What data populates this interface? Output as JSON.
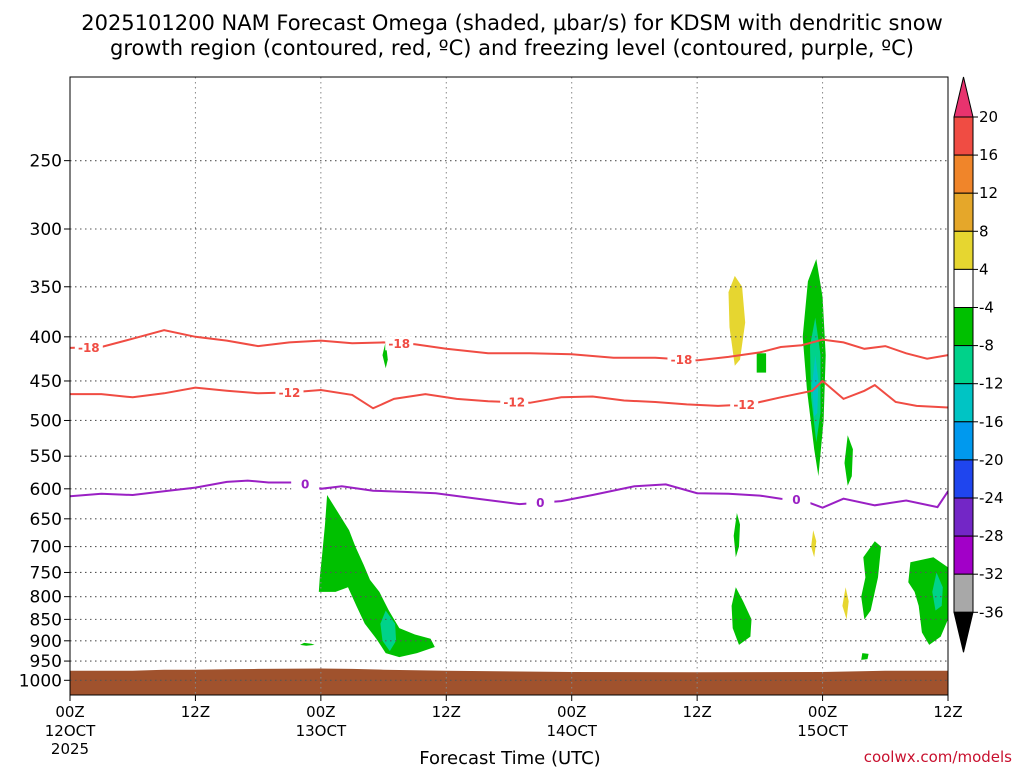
{
  "chart_data": {
    "type": "contour",
    "title_lines": [
      "2025101200 NAM Forecast Omega (shaded, μbar/s) for KDSM with dendritic snow",
      "growth region (contoured, red, ºC) and freezing level (contoured, purple, ºC)"
    ],
    "xlabel": "Forecast Time (UTC)",
    "credit": "coolwx.com/models",
    "x_range_hours": [
      0,
      84
    ],
    "y_axis": {
      "label": "",
      "scale": "log-pressure",
      "range_hPa": [
        200,
        1040
      ],
      "tick_labels": [
        "250",
        "300",
        "350",
        "400",
        "450",
        "500",
        "550",
        "600",
        "650",
        "700",
        "750",
        "800",
        "850",
        "900",
        "950",
        "1000"
      ],
      "tick_values": [
        250,
        300,
        350,
        400,
        450,
        500,
        550,
        600,
        650,
        700,
        750,
        800,
        850,
        900,
        950,
        1000
      ]
    },
    "x_ticks": [
      {
        "hour": 0,
        "l1": "00Z",
        "l2": "12OCT",
        "l3": "2025"
      },
      {
        "hour": 12,
        "l1": "12Z",
        "l2": "",
        "l3": ""
      },
      {
        "hour": 24,
        "l1": "00Z",
        "l2": "13OCT",
        "l3": ""
      },
      {
        "hour": 36,
        "l1": "12Z",
        "l2": "",
        "l3": ""
      },
      {
        "hour": 48,
        "l1": "00Z",
        "l2": "14OCT",
        "l3": ""
      },
      {
        "hour": 60,
        "l1": "12Z",
        "l2": "",
        "l3": ""
      },
      {
        "hour": 72,
        "l1": "00Z",
        "l2": "15OCT",
        "l3": ""
      },
      {
        "hour": 84,
        "l1": "12Z",
        "l2": "",
        "l3": ""
      }
    ],
    "grid": true,
    "colorbar": {
      "tick_labels": [
        "20",
        "16",
        "12",
        "8",
        "4",
        "-4",
        "-8",
        "-12",
        "-16",
        "-20",
        "-24",
        "-28",
        "-32",
        "-36"
      ],
      "colors": [
        "#e8336e",
        "#f04c43",
        "#f0852a",
        "#e5a72a",
        "#e6d630",
        "#ffffff",
        "#00c000",
        "#00d28a",
        "#00c4c4",
        "#0099ee",
        "#1f45ee",
        "#7326c6",
        "#a200c8",
        "#a8a8a8",
        "#000000"
      ]
    },
    "contours": [
      {
        "name": "-18",
        "color": "#f04c43",
        "label": "-18",
        "label_hours": [
          1.8,
          31.5,
          58.5
        ],
        "points": [
          [
            0,
            412
          ],
          [
            3,
            411
          ],
          [
            6,
            402
          ],
          [
            9,
            393
          ],
          [
            12,
            400
          ],
          [
            15,
            404
          ],
          [
            18,
            410
          ],
          [
            21,
            406
          ],
          [
            24,
            404
          ],
          [
            27,
            407
          ],
          [
            30,
            406
          ],
          [
            33,
            408
          ],
          [
            36,
            413
          ],
          [
            40,
            418
          ],
          [
            44,
            418
          ],
          [
            48,
            419
          ],
          [
            52,
            423
          ],
          [
            56,
            423
          ],
          [
            60,
            426
          ],
          [
            63,
            422
          ],
          [
            66,
            417
          ],
          [
            68,
            411
          ],
          [
            70,
            409
          ],
          [
            72,
            403
          ],
          [
            74,
            406
          ],
          [
            76,
            413
          ],
          [
            78,
            410
          ],
          [
            80,
            418
          ],
          [
            82,
            424
          ],
          [
            84,
            420
          ]
        ]
      },
      {
        "name": "-12",
        "color": "#f04c43",
        "label": "-12",
        "label_hours": [
          21,
          42.5,
          64.5
        ],
        "points": [
          [
            0,
            466
          ],
          [
            3,
            466
          ],
          [
            6,
            470
          ],
          [
            9,
            465
          ],
          [
            12,
            458
          ],
          [
            15,
            462
          ],
          [
            18,
            465
          ],
          [
            21,
            464
          ],
          [
            24,
            461
          ],
          [
            27,
            467
          ],
          [
            29,
            484
          ],
          [
            31,
            472
          ],
          [
            34,
            466
          ],
          [
            37,
            472
          ],
          [
            40,
            475
          ],
          [
            44,
            477
          ],
          [
            47,
            470
          ],
          [
            50,
            469
          ],
          [
            53,
            474
          ],
          [
            56,
            476
          ],
          [
            59,
            479
          ],
          [
            62,
            481
          ],
          [
            65,
            479
          ],
          [
            68,
            470
          ],
          [
            71,
            462
          ],
          [
            72,
            450
          ],
          [
            74,
            472
          ],
          [
            76,
            462
          ],
          [
            77,
            455
          ],
          [
            79,
            476
          ],
          [
            81,
            481
          ],
          [
            84,
            483
          ]
        ]
      },
      {
        "name": "0",
        "color": "#9a20c4",
        "label": "0",
        "label_hours": [
          22.5,
          45,
          69.5
        ],
        "points": [
          [
            0,
            612
          ],
          [
            3,
            608
          ],
          [
            6,
            610
          ],
          [
            9,
            604
          ],
          [
            12,
            598
          ],
          [
            15,
            589
          ],
          [
            17,
            587
          ],
          [
            19,
            590
          ],
          [
            22,
            590
          ],
          [
            24,
            600
          ],
          [
            26,
            596
          ],
          [
            29,
            603
          ],
          [
            32,
            605
          ],
          [
            35,
            607
          ],
          [
            39,
            616
          ],
          [
            43,
            625
          ],
          [
            47,
            620
          ],
          [
            50,
            610
          ],
          [
            54,
            596
          ],
          [
            57,
            593
          ],
          [
            60,
            607
          ],
          [
            63,
            608
          ],
          [
            66,
            611
          ],
          [
            68,
            616
          ],
          [
            70,
            618
          ],
          [
            72,
            631
          ],
          [
            74,
            616
          ],
          [
            77,
            627
          ],
          [
            80,
            619
          ],
          [
            83,
            630
          ],
          [
            84,
            604
          ]
        ]
      }
    ],
    "shaded_regions": [
      {
        "name": "omega <= -4",
        "color": "#00c000",
        "polygon": [
          [
            24.6,
            610
          ],
          [
            26.7,
            670
          ],
          [
            27.3,
            700
          ],
          [
            28.1,
            735
          ],
          [
            28.7,
            765
          ],
          [
            29.6,
            790
          ],
          [
            30.5,
            830
          ],
          [
            31.5,
            870
          ],
          [
            33.0,
            885
          ],
          [
            34.5,
            895
          ],
          [
            34.9,
            915
          ],
          [
            33.2,
            930
          ],
          [
            31.5,
            940
          ],
          [
            30.2,
            930
          ],
          [
            29.3,
            895
          ],
          [
            28.2,
            860
          ],
          [
            27.4,
            820
          ],
          [
            26.6,
            780
          ],
          [
            25.4,
            790
          ],
          [
            23.8,
            790
          ],
          [
            23.9,
            760
          ],
          [
            24.1,
            720
          ],
          [
            24.4,
            660
          ]
        ]
      },
      {
        "name": "omega <= -8",
        "color": "#00d28a",
        "polygon": [
          [
            30.2,
            830
          ],
          [
            31.1,
            860
          ],
          [
            31.2,
            900
          ],
          [
            30.6,
            925
          ],
          [
            29.9,
            900
          ],
          [
            29.7,
            860
          ]
        ]
      },
      {
        "name": "omega <= -4",
        "color": "#00c000",
        "polygon": [
          [
            22.4,
            905
          ],
          [
            23.1,
            907
          ],
          [
            23.4,
            910
          ],
          [
            22.6,
            912
          ],
          [
            22.0,
            910
          ]
        ]
      },
      {
        "name": "omega <= -4",
        "color": "#00c000",
        "polygon": [
          [
            30.2,
            405
          ],
          [
            30.4,
            425
          ],
          [
            30.2,
            435
          ],
          [
            29.9,
            420
          ]
        ]
      },
      {
        "name": "omega >= 4",
        "color": "#e6d630",
        "polygon": [
          [
            63.6,
            340
          ],
          [
            64.3,
            350
          ],
          [
            64.6,
            385
          ],
          [
            64.1,
            425
          ],
          [
            63.6,
            432
          ],
          [
            63.1,
            390
          ],
          [
            63.0,
            355
          ]
        ]
      },
      {
        "name": "omega <= -4",
        "color": "#00c000",
        "polygon": [
          [
            65.7,
            418
          ],
          [
            66.6,
            418
          ],
          [
            66.6,
            440
          ],
          [
            65.7,
            440
          ]
        ]
      },
      {
        "name": "omega <= -4",
        "color": "#00c000",
        "polygon": [
          [
            71.4,
            325
          ],
          [
            72.0,
            360
          ],
          [
            72.3,
            420
          ],
          [
            72.1,
            500
          ],
          [
            71.6,
            580
          ],
          [
            71.2,
            540
          ],
          [
            70.5,
            460
          ],
          [
            70.1,
            400
          ],
          [
            70.6,
            345
          ]
        ]
      },
      {
        "name": "omega <= -8",
        "color": "#00d28a",
        "polygon": [
          [
            71.3,
            380
          ],
          [
            71.8,
            420
          ],
          [
            71.8,
            490
          ],
          [
            71.4,
            530
          ],
          [
            70.9,
            470
          ],
          [
            70.8,
            410
          ]
        ]
      },
      {
        "name": "omega <= -12",
        "color": "#00c4c4",
        "polygon": [
          [
            71.3,
            420
          ],
          [
            71.6,
            450
          ],
          [
            71.5,
            490
          ],
          [
            71.2,
            495
          ],
          [
            71.0,
            455
          ]
        ]
      },
      {
        "name": "omega <= -4",
        "color": "#00c000",
        "polygon": [
          [
            74.4,
            520
          ],
          [
            74.9,
            540
          ],
          [
            74.8,
            580
          ],
          [
            74.4,
            595
          ],
          [
            74.1,
            560
          ]
        ]
      },
      {
        "name": "omega >= 4",
        "color": "#e6d630",
        "polygon": [
          [
            71.1,
            670
          ],
          [
            71.4,
            690
          ],
          [
            71.2,
            720
          ],
          [
            70.9,
            700
          ]
        ]
      },
      {
        "name": "omega >= 4",
        "color": "#e6d630",
        "polygon": [
          [
            74.2,
            780
          ],
          [
            74.5,
            810
          ],
          [
            74.3,
            850
          ],
          [
            73.9,
            820
          ]
        ]
      },
      {
        "name": "omega <= -4",
        "color": "#00c000",
        "polygon": [
          [
            63.8,
            640
          ],
          [
            64.1,
            660
          ],
          [
            64.0,
            700
          ],
          [
            63.7,
            720
          ],
          [
            63.5,
            680
          ]
        ]
      },
      {
        "name": "omega <= -4",
        "color": "#00c000",
        "polygon": [
          [
            63.7,
            780
          ],
          [
            64.4,
            810
          ],
          [
            65.2,
            850
          ],
          [
            65.1,
            890
          ],
          [
            64.0,
            910
          ],
          [
            63.4,
            870
          ],
          [
            63.3,
            820
          ]
        ]
      },
      {
        "name": "omega <= -4",
        "color": "#00c000",
        "polygon": [
          [
            77.0,
            690
          ],
          [
            77.6,
            700
          ],
          [
            77.3,
            760
          ],
          [
            76.6,
            830
          ],
          [
            76.0,
            850
          ],
          [
            75.7,
            800
          ],
          [
            76.1,
            760
          ],
          [
            75.9,
            720
          ]
        ]
      },
      {
        "name": "omega <= -4",
        "color": "#00c000",
        "polygon": [
          [
            75.8,
            930
          ],
          [
            76.4,
            932
          ],
          [
            76.3,
            945
          ],
          [
            75.7,
            947
          ]
        ]
      },
      {
        "name": "omega <= -4",
        "color": "#00c000",
        "polygon": [
          [
            80.4,
            730
          ],
          [
            82.6,
            720
          ],
          [
            84,
            740
          ],
          [
            84,
            850
          ],
          [
            83.3,
            890
          ],
          [
            82.2,
            910
          ],
          [
            81.5,
            880
          ],
          [
            81.2,
            820
          ],
          [
            80.8,
            790
          ],
          [
            80.2,
            770
          ]
        ]
      },
      {
        "name": "omega <= -8",
        "color": "#00d28a",
        "polygon": [
          [
            82.9,
            750
          ],
          [
            83.5,
            780
          ],
          [
            83.4,
            820
          ],
          [
            82.8,
            830
          ],
          [
            82.5,
            790
          ]
        ]
      }
    ],
    "terrain": {
      "color": "#a0522d",
      "points": [
        [
          0,
          975
        ],
        [
          6,
          975
        ],
        [
          9,
          972
        ],
        [
          12,
          972
        ],
        [
          15,
          971
        ],
        [
          18,
          970
        ],
        [
          24,
          969
        ],
        [
          27,
          970
        ],
        [
          30,
          972
        ],
        [
          36,
          975
        ],
        [
          48,
          978
        ],
        [
          60,
          979
        ],
        [
          72,
          978
        ],
        [
          78,
          975
        ],
        [
          84,
          975
        ]
      ]
    }
  }
}
